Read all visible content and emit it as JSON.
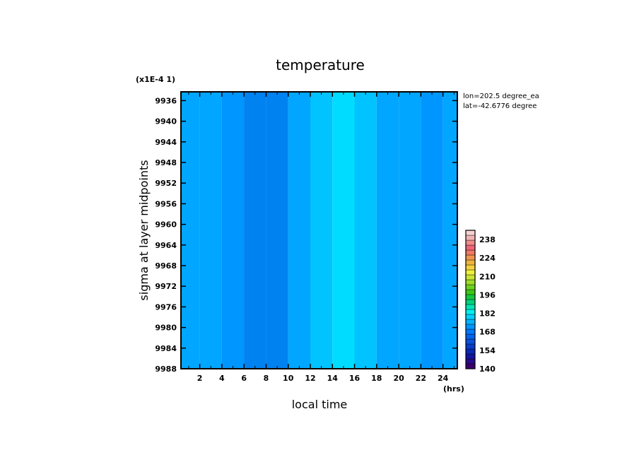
{
  "chart_data": {
    "type": "heatmap",
    "title": "temperature",
    "scale_note": "(x1E-4 1)",
    "xlabel": "local time",
    "x_unit": "(hrs)",
    "ylabel": "sigma at layer midpoints",
    "info_lines": [
      "lon=202.5 degree_ea",
      "lat=-42.6776 degree"
    ],
    "x_ticks": [
      "2",
      "4",
      "6",
      "8",
      "10",
      "12",
      "14",
      "16",
      "18",
      "20",
      "22",
      "24"
    ],
    "y_ticks": [
      "9936",
      "9940",
      "9944",
      "9948",
      "9952",
      "9956",
      "9960",
      "9964",
      "9968",
      "9972",
      "9976",
      "9980",
      "9984",
      "9988"
    ],
    "xlim": [
      0.3,
      25.3
    ],
    "ylim": [
      9934.3,
      9988
    ],
    "y_inverted": true,
    "colorbar": {
      "ticks": [
        "140",
        "154",
        "168",
        "182",
        "196",
        "210",
        "224",
        "238"
      ],
      "range": [
        140,
        245
      ],
      "colors": [
        "#3c006e",
        "#2a0a8c",
        "#1414a0",
        "#0a28b4",
        "#0a3cc8",
        "#0a50dc",
        "#0064f0",
        "#0078ff",
        "#0096ff",
        "#00b4ff",
        "#00d2ff",
        "#00f0f0",
        "#00e6b4",
        "#00d278",
        "#14c83c",
        "#3cc814",
        "#6ed21e",
        "#a0dc28",
        "#c8e632",
        "#f0f03c",
        "#f5d23c",
        "#f0b43c",
        "#f09650",
        "#f07864",
        "#f06478",
        "#f08c8c",
        "#f0b4b4",
        "#f5d2d2"
      ]
    },
    "time_columns": [
      {
        "hour": 1,
        "value": 164
      },
      {
        "hour": 3,
        "value": 164
      },
      {
        "hour": 5,
        "value": 163
      },
      {
        "hour": 7,
        "value": 161
      },
      {
        "hour": 9,
        "value": 161
      },
      {
        "hour": 11,
        "value": 164
      },
      {
        "hour": 13,
        "value": 166
      },
      {
        "hour": 15,
        "value": 167
      },
      {
        "hour": 17,
        "value": 166
      },
      {
        "hour": 19,
        "value": 164
      },
      {
        "hour": 21,
        "value": 164
      },
      {
        "hour": 23,
        "value": 163
      },
      {
        "hour": 25,
        "value": 164
      }
    ],
    "level_colors": {
      "161": "#0082f0",
      "163": "#0096ff",
      "164": "#00a6ff",
      "166": "#00c3ff",
      "167": "#00dcff"
    }
  }
}
